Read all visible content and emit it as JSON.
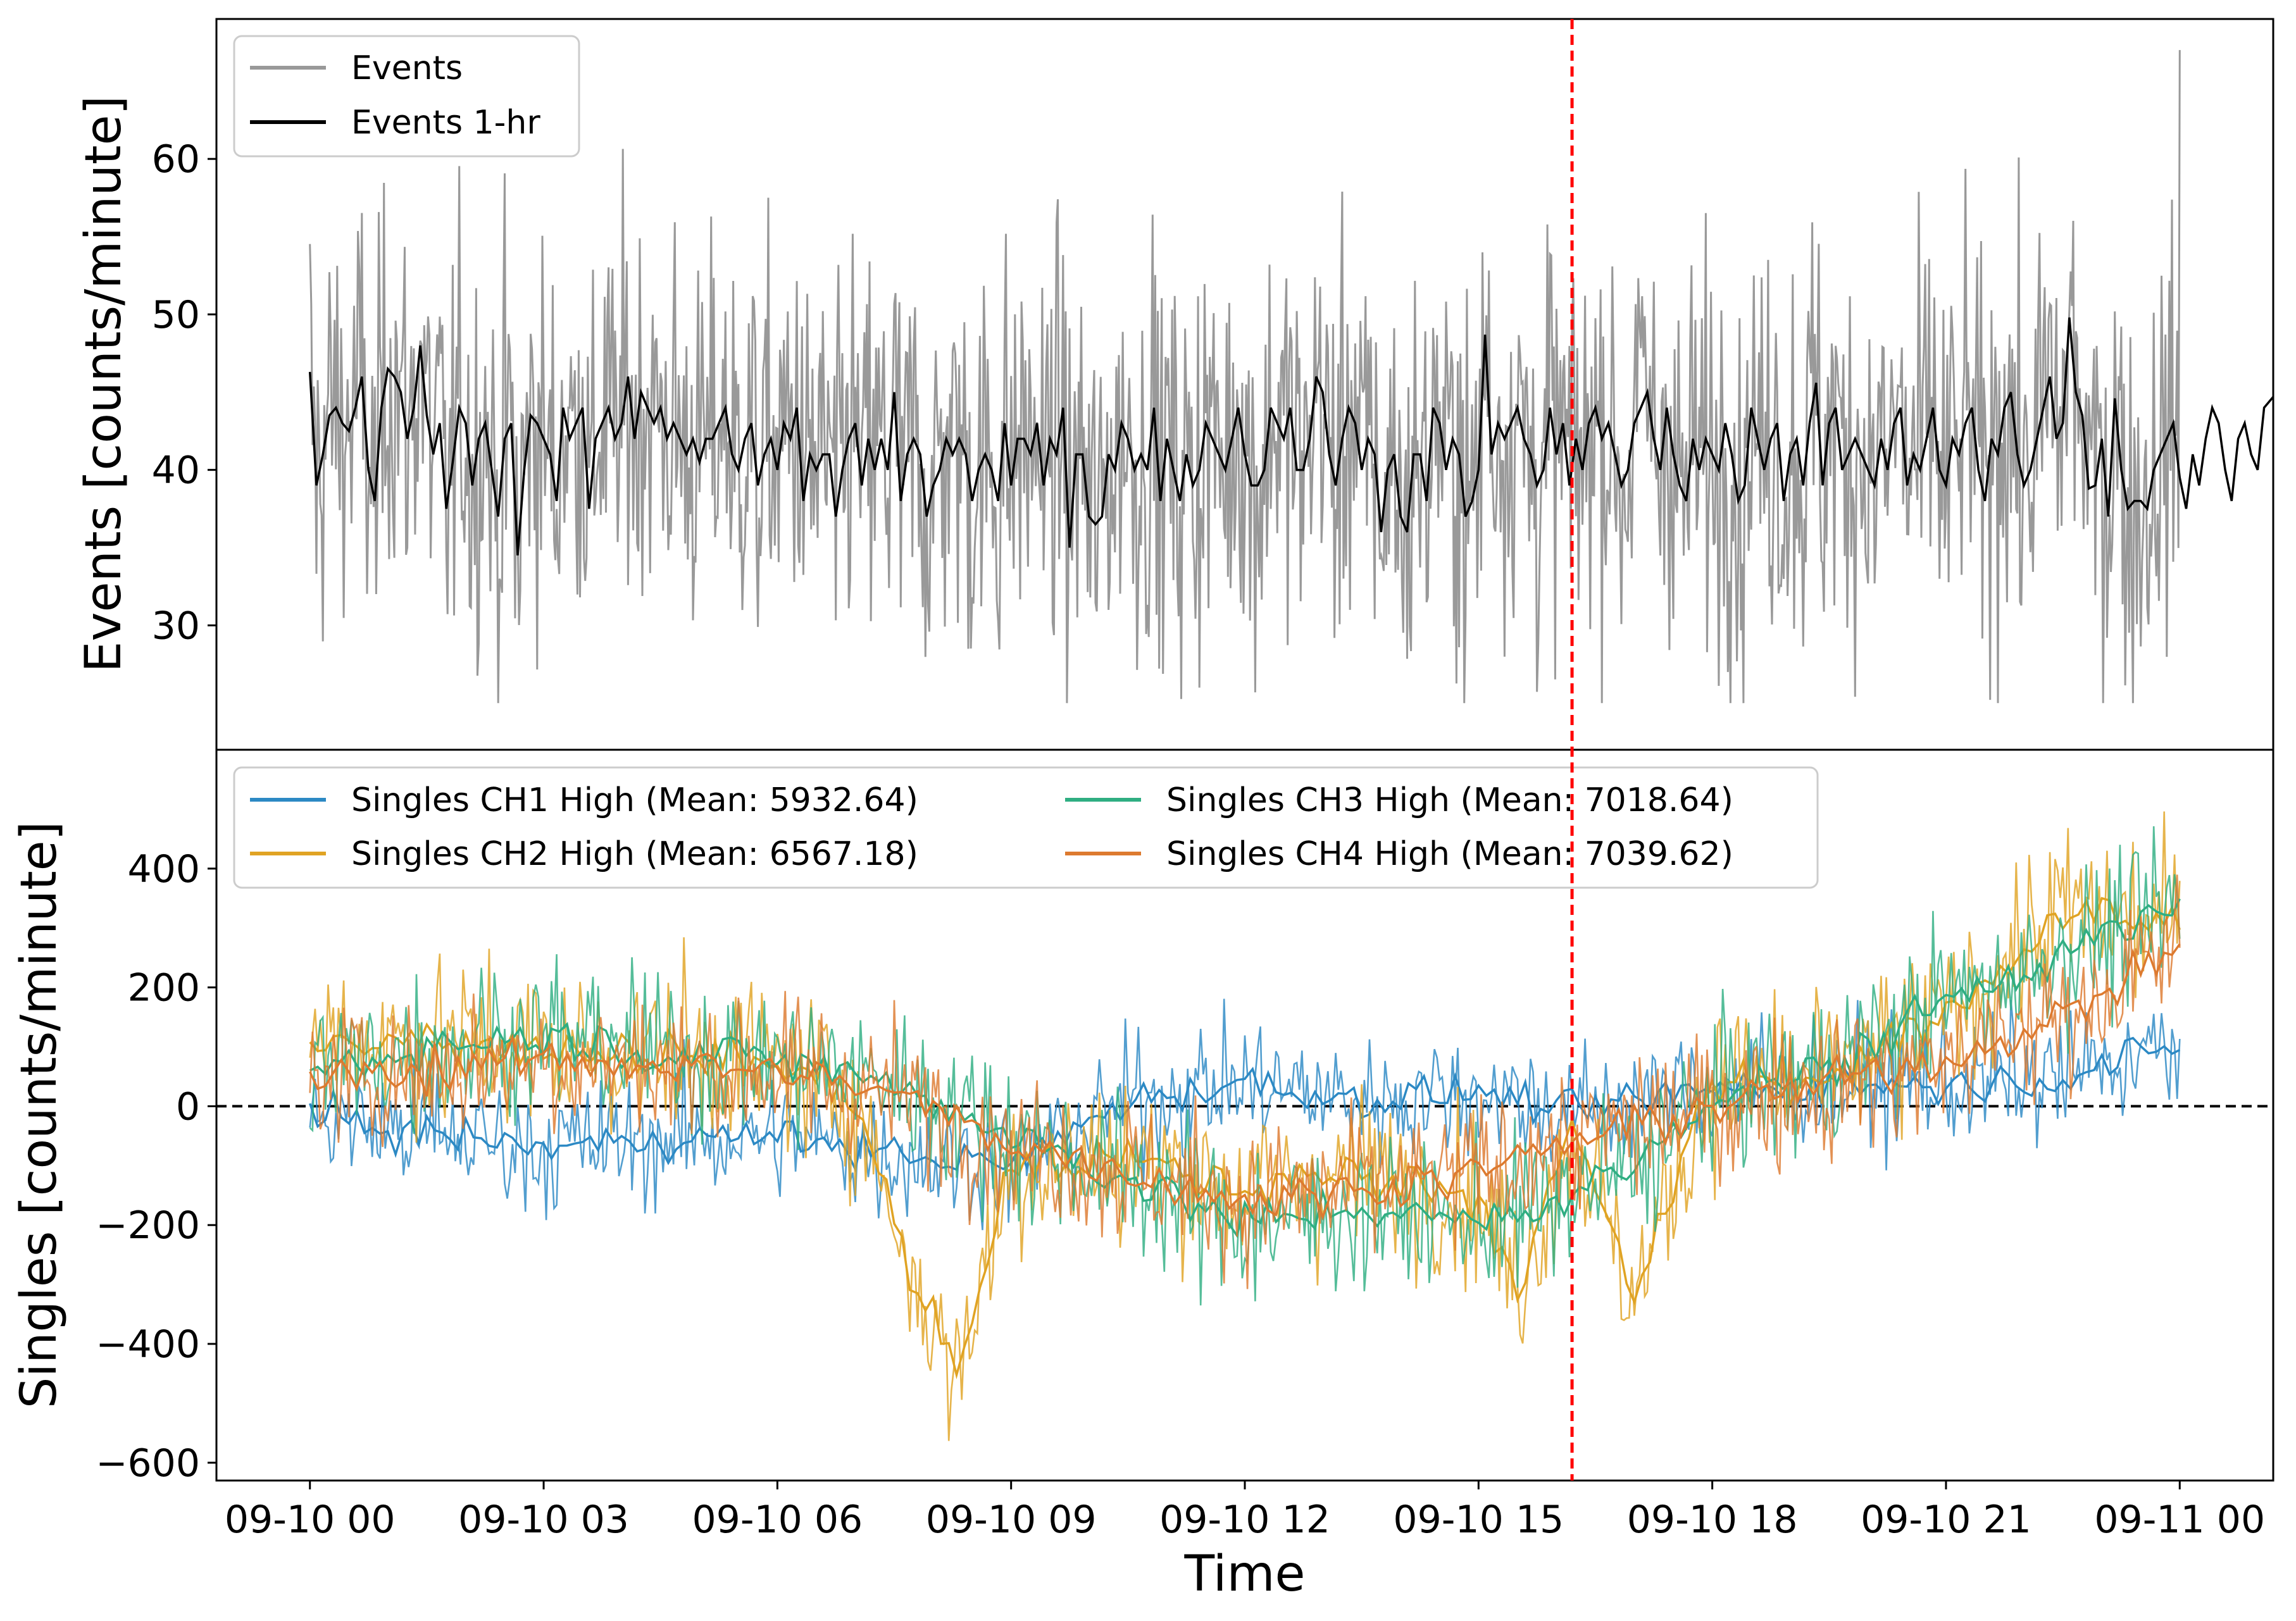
{
  "chart_data": [
    {
      "type": "line",
      "panel": "top",
      "ylabel": "Events [counts/minute]",
      "xlabel": "",
      "ylim": [
        22,
        69
      ],
      "yticks": [
        30,
        40,
        50,
        60
      ],
      "legend_position": "upper-left",
      "vline": {
        "x": "09-10 16:12",
        "color": "#ff0000",
        "style": "dashed"
      },
      "series": [
        {
          "name": "Events",
          "color": "#999999",
          "resolution": "1-min",
          "mean": 42.0,
          "min": 25,
          "max": 67
        },
        {
          "name": "Events 1-hr",
          "color": "#000000",
          "resolution": "5-min smoothed",
          "x_start_min": 0,
          "x_step_min": 5,
          "values": [
            46.3,
            39,
            41,
            43.5,
            44,
            43,
            42.5,
            44,
            46,
            40,
            38,
            44,
            46.5,
            46,
            45,
            42,
            44,
            48,
            43.5,
            41,
            43,
            37.5,
            40.5,
            44,
            43,
            39,
            42,
            43,
            40,
            37,
            42,
            43,
            34.5,
            40,
            43.5,
            43,
            42,
            41,
            38,
            44,
            42,
            43,
            44,
            37.5,
            42,
            43,
            44,
            42,
            43,
            46,
            42,
            45,
            44,
            43,
            44,
            42,
            43,
            42,
            41,
            42,
            40.5,
            42,
            42,
            43,
            44,
            41,
            40,
            42,
            43,
            39,
            41,
            42,
            40,
            43,
            42,
            44,
            38,
            41,
            40,
            41,
            41,
            37,
            40,
            42,
            43,
            39,
            42,
            40,
            42,
            40,
            45,
            38,
            41,
            42,
            41,
            37,
            39,
            40,
            42,
            41,
            42,
            41,
            38,
            40,
            41,
            40,
            38,
            43,
            39,
            42,
            42,
            41,
            43,
            39,
            42,
            41,
            44,
            35,
            41,
            41,
            37,
            36.5,
            37,
            41,
            40,
            43,
            42,
            40,
            41,
            40,
            44,
            38,
            42,
            40,
            38,
            41,
            39,
            40,
            43,
            42,
            41,
            40,
            42,
            44,
            41,
            39,
            39,
            40,
            44,
            43,
            42,
            44,
            40,
            40,
            42,
            46,
            45,
            41,
            39,
            42,
            44,
            43,
            40,
            42,
            41,
            36,
            40,
            41,
            37,
            36,
            41,
            41,
            38,
            44,
            43,
            40,
            42,
            41,
            37,
            38,
            40,
            48.7,
            41,
            43,
            42,
            43,
            44,
            42,
            41,
            39,
            40,
            44,
            41,
            43,
            39,
            42,
            40,
            43,
            44,
            42,
            43,
            41,
            39,
            40,
            43,
            44,
            45,
            42,
            40,
            44,
            41,
            39,
            38,
            42,
            40,
            42,
            41,
            40,
            43,
            41,
            38,
            39,
            44,
            42,
            40,
            42,
            43,
            38,
            41,
            42,
            39,
            43,
            45.6,
            39,
            43,
            44,
            40,
            41,
            42,
            41,
            40,
            39,
            42,
            40,
            43,
            44,
            39,
            41,
            40,
            42,
            44,
            40,
            39,
            42,
            41,
            43,
            44,
            40,
            38,
            42,
            41,
            44,
            45,
            41,
            39,
            40,
            42,
            44,
            46,
            42,
            43,
            49.8,
            45,
            43.5,
            38.8,
            39,
            42,
            37,
            44.6,
            40,
            37.5,
            38,
            38,
            37.5,
            40,
            41,
            42,
            43,
            39.5,
            37.5,
            41,
            39,
            42,
            44,
            43,
            40,
            38,
            42,
            43,
            41,
            40,
            44,
            44.5,
            45,
            41,
            39,
            42,
            40,
            44.5,
            45.3,
            41,
            38,
            42,
            39,
            43,
            39,
            40,
            42,
            41,
            43,
            38,
            37.8,
            45.8,
            43.5,
            46.4,
            41,
            43,
            40,
            39,
            41,
            44.5,
            41,
            40,
            44.3,
            44,
            43,
            45,
            42,
            42,
            45.5,
            46.2,
            44,
            42,
            40,
            41,
            44,
            42,
            44.5,
            45,
            44,
            41,
            44,
            42,
            40,
            43,
            44.5,
            42,
            41,
            45,
            43,
            43.5,
            45,
            42,
            41,
            43,
            42,
            44,
            42,
            43,
            44,
            43,
            41,
            42,
            49.5,
            44,
            40,
            42,
            44,
            45,
            43,
            41,
            43,
            44,
            45,
            46.2,
            44,
            41,
            43,
            38,
            39,
            36.4,
            46.5,
            46,
            47,
            42,
            43,
            46,
            40.5,
            44.4,
            44,
            46,
            45.5,
            46,
            48
          ]
        }
      ]
    },
    {
      "type": "line",
      "panel": "bottom",
      "ylabel": "Singles [counts/minute]",
      "xlabel": "Time",
      "ylim": [
        -630,
        600
      ],
      "yticks": [
        -600,
        -400,
        -200,
        0,
        200,
        400
      ],
      "xlim_hours": [
        -1.2,
        25.2
      ],
      "xticks": [
        "09-10 00",
        "09-10 03",
        "09-10 06",
        "09-10 09",
        "09-10 12",
        "09-10 15",
        "09-10 18",
        "09-10 21",
        "09-11 00"
      ],
      "hline": {
        "y": 0,
        "color": "#000000",
        "style": "dashed"
      },
      "vline": {
        "x": "09-10 16:12",
        "color": "#ff0000",
        "style": "dashed"
      },
      "legend_position": "upper-left",
      "legend_columns": 2,
      "series": [
        {
          "name": "Singles CH1 High (Mean: 5932.64)",
          "color": "#2c89c4",
          "knots_hours": [
            0,
            1.5,
            3,
            4.5,
            6,
            7.5,
            9,
            10.5,
            12,
            13.5,
            15,
            16.2,
            18,
            19.5,
            21,
            22.5,
            24
          ],
          "knots_values": [
            -20,
            -45,
            -70,
            -55,
            -50,
            -80,
            -100,
            10,
            40,
            10,
            25,
            -10,
            30,
            40,
            35,
            50,
            100
          ]
        },
        {
          "name": "Singles CH2 High (Mean: 6567.18)",
          "color": "#e0a323",
          "knots_hours": [
            0,
            1.5,
            3,
            4.5,
            6,
            7,
            7.7,
            8.3,
            9,
            10.5,
            12,
            13.5,
            15,
            15.5,
            16.2,
            17,
            18,
            19.5,
            21,
            22.5,
            24
          ],
          "knots_values": [
            120,
            110,
            100,
            90,
            70,
            20,
            -280,
            -450,
            -100,
            -90,
            -140,
            -110,
            -150,
            -300,
            -40,
            -320,
            40,
            50,
            150,
            330,
            300
          ]
        },
        {
          "name": "Singles CH3 High (Mean: 7018.64)",
          "color": "#2fae82",
          "knots_hours": [
            0,
            1.5,
            3,
            4.5,
            6,
            7.5,
            9,
            10.5,
            12,
            13.5,
            15,
            16.2,
            17,
            18,
            19.5,
            21,
            22.5,
            24
          ],
          "knots_values": [
            60,
            100,
            120,
            90,
            80,
            40,
            -50,
            -120,
            -200,
            -170,
            -200,
            -150,
            -100,
            20,
            60,
            180,
            260,
            330
          ]
        },
        {
          "name": "Singles CH4 High (Mean: 7039.62)",
          "color": "#dd7a2f",
          "knots_hours": [
            0,
            1.5,
            3,
            4.5,
            6,
            7.5,
            9,
            10.5,
            12,
            13.5,
            15,
            16.2,
            18,
            19.5,
            21,
            22.5,
            24
          ],
          "knots_values": [
            50,
            60,
            80,
            70,
            60,
            20,
            -60,
            -110,
            -160,
            -140,
            -110,
            -60,
            0,
            40,
            80,
            150,
            270
          ]
        }
      ]
    }
  ]
}
